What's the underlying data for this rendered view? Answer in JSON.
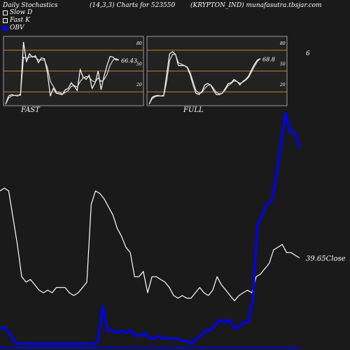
{
  "header": {
    "left": "Daily Stochastics",
    "middle": "(14,3,3) Charts for 523550",
    "right": "(KRYPTON_IND) munafasutra.tbsjar.com"
  },
  "legend": [
    {
      "label": "Slow  D",
      "color": "#ffffff",
      "style": "outline"
    },
    {
      "label": "Fast K",
      "color": "#ffffff",
      "style": "outline"
    },
    {
      "label": "OBV",
      "color": "#0000ff",
      "style": "filled"
    }
  ],
  "stray_label": "6",
  "chart_data": [
    {
      "type": "line",
      "panel": "FAST",
      "xlabel": "FAST",
      "ylim": [
        0,
        100
      ],
      "gridlines": [
        20,
        50,
        80
      ],
      "tick_labels": [
        "80",
        "50",
        "20"
      ],
      "last_value_label": "66.43",
      "series": [
        {
          "name": "Fast K",
          "values": [
            2,
            14,
            16,
            15,
            14,
            17,
            92,
            63,
            75,
            70,
            72,
            62,
            69,
            68,
            48,
            14,
            25,
            18,
            17,
            16,
            23,
            25,
            33,
            28,
            22,
            52,
            41,
            38,
            44,
            25,
            33,
            50,
            23,
            43,
            58,
            71,
            70,
            66,
            66
          ]
        },
        {
          "name": "Slow  D",
          "values": [
            2,
            11,
            14,
            15,
            15,
            15,
            70,
            68,
            70,
            71,
            70,
            66,
            66,
            66,
            55,
            35,
            28,
            20,
            19,
            17,
            19,
            22,
            28,
            29,
            27,
            35,
            40,
            42,
            41,
            36,
            34,
            40,
            35,
            38,
            45,
            58,
            66,
            68,
            66
          ]
        }
      ]
    },
    {
      "type": "line",
      "panel": "FULL",
      "xlabel": "FULL",
      "ylim": [
        0,
        100
      ],
      "gridlines": [
        20,
        50,
        80
      ],
      "tick_labels": [
        "80",
        "50",
        "20"
      ],
      "last_value_label": "68.8",
      "series": [
        {
          "name": "Fast K",
          "values": [
            2,
            12,
            14,
            15,
            14,
            15,
            45,
            75,
            78,
            74,
            58,
            58,
            58,
            55,
            45,
            30,
            18,
            16,
            20,
            30,
            32,
            30,
            22,
            16,
            16,
            18,
            25,
            32,
            33,
            38,
            35,
            30,
            35,
            38,
            43,
            52,
            60,
            66,
            68
          ]
        },
        {
          "name": "Slow  D",
          "values": [
            2,
            10,
            13,
            14,
            14,
            14,
            35,
            65,
            74,
            74,
            62,
            60,
            58,
            56,
            48,
            35,
            22,
            18,
            19,
            25,
            29,
            30,
            25,
            19,
            17,
            18,
            23,
            29,
            32,
            36,
            35,
            32,
            34,
            37,
            41,
            49,
            57,
            64,
            68
          ]
        }
      ]
    },
    {
      "type": "line",
      "panel": "price",
      "last_value_label": "39.65",
      "label_suffix": "Close",
      "series": [
        {
          "name": "Close",
          "color": "#ffffff",
          "values": [
            58,
            59,
            58,
            48,
            38,
            26,
            24,
            25,
            23,
            21,
            20,
            21,
            20,
            22,
            22,
            22,
            20,
            19,
            20,
            22,
            24,
            53,
            58,
            57,
            55,
            52,
            49,
            44,
            41,
            37,
            35,
            26,
            26,
            28,
            20,
            26,
            26,
            25,
            24,
            22,
            19,
            18,
            19,
            18,
            18,
            20,
            22,
            20,
            19,
            21,
            26,
            23,
            21,
            19,
            17,
            19,
            20,
            21,
            20,
            26,
            27,
            29,
            31,
            36,
            37,
            38,
            35,
            35,
            34,
            33
          ]
        },
        {
          "name": "OBV",
          "color": "#0000ff",
          "values": [
            7,
            7,
            5,
            2,
            1,
            1,
            1,
            1,
            1,
            1,
            1,
            1,
            1,
            1,
            1,
            1,
            1,
            1,
            1,
            1,
            1,
            2,
            15,
            6,
            6,
            5,
            6,
            5,
            6,
            4,
            4,
            5,
            3,
            3,
            4,
            3,
            3,
            3,
            3,
            2,
            2,
            1,
            3,
            4,
            6,
            6,
            8,
            10,
            9,
            10,
            7,
            7,
            9,
            9,
            17,
            45,
            49,
            53,
            54,
            63,
            75,
            87,
            80,
            80,
            74
          ]
        }
      ]
    }
  ]
}
